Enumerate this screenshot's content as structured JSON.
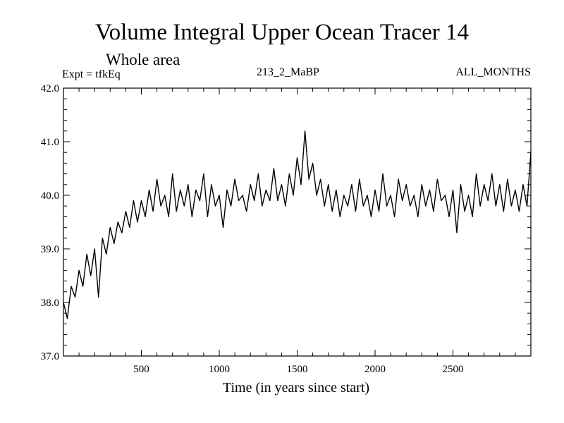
{
  "header": {
    "title": "Volume Integral Upper Ocean Tracer 14",
    "subtitle": "Whole area",
    "expt_label": "Expt = tfkEq",
    "run_label": "213_2_MaBP",
    "months_label": "ALL_MONTHS"
  },
  "chart_data": {
    "type": "line",
    "title": "Volume Integral Upper Ocean Tracer 14",
    "subtitle": "Whole area",
    "xlabel": "Time (in years since start)",
    "ylabel": "",
    "xlim": [
      0,
      3000
    ],
    "ylim": [
      37.0,
      42.0
    ],
    "x_ticks": [
      500,
      1000,
      1500,
      2000,
      2500
    ],
    "y_ticks": [
      "37.0",
      "38.0",
      "39.0",
      "40.0",
      "41.0",
      "42.0"
    ],
    "grid": false,
    "series": [
      {
        "x": [
          0,
          25,
          50,
          75,
          100,
          125,
          150,
          175,
          200,
          225,
          250,
          275,
          300,
          325,
          350,
          375,
          400,
          425,
          450,
          475,
          500,
          525,
          550,
          575,
          600,
          625,
          650,
          675,
          700,
          725,
          750,
          775,
          800,
          825,
          850,
          875,
          900,
          925,
          950,
          975,
          1000,
          1025,
          1050,
          1075,
          1100,
          1125,
          1150,
          1175,
          1200,
          1225,
          1250,
          1275,
          1300,
          1325,
          1350,
          1375,
          1400,
          1425,
          1450,
          1475,
          1500,
          1525,
          1550,
          1575,
          1600,
          1625,
          1650,
          1675,
          1700,
          1725,
          1750,
          1775,
          1800,
          1825,
          1850,
          1875,
          1900,
          1925,
          1950,
          1975,
          2000,
          2025,
          2050,
          2075,
          2100,
          2125,
          2150,
          2175,
          2200,
          2225,
          2250,
          2275,
          2300,
          2325,
          2350,
          2375,
          2400,
          2425,
          2450,
          2475,
          2500,
          2525,
          2550,
          2575,
          2600,
          2625,
          2650,
          2675,
          2700,
          2725,
          2750,
          2775,
          2800,
          2825,
          2850,
          2875,
          2900,
          2925,
          2950,
          2975,
          3000
        ],
        "values": [
          38.0,
          37.7,
          38.3,
          38.1,
          38.6,
          38.3,
          38.9,
          38.5,
          39.0,
          38.1,
          39.2,
          38.9,
          39.4,
          39.1,
          39.5,
          39.3,
          39.7,
          39.4,
          39.9,
          39.5,
          39.9,
          39.6,
          40.1,
          39.7,
          40.3,
          39.8,
          40.0,
          39.6,
          40.4,
          39.7,
          40.1,
          39.8,
          40.2,
          39.6,
          40.1,
          39.9,
          40.4,
          39.6,
          40.2,
          39.8,
          40.0,
          39.4,
          40.1,
          39.8,
          40.3,
          39.9,
          40.0,
          39.7,
          40.2,
          39.9,
          40.4,
          39.8,
          40.1,
          39.9,
          40.5,
          39.9,
          40.2,
          39.8,
          40.4,
          40.0,
          40.7,
          40.2,
          41.2,
          40.3,
          40.6,
          40.0,
          40.3,
          39.8,
          40.2,
          39.7,
          40.1,
          39.6,
          40.0,
          39.8,
          40.2,
          39.7,
          40.3,
          39.8,
          40.0,
          39.6,
          40.1,
          39.7,
          40.4,
          39.8,
          40.0,
          39.6,
          40.3,
          39.9,
          40.2,
          39.8,
          40.0,
          39.6,
          40.2,
          39.8,
          40.1,
          39.7,
          40.3,
          39.9,
          40.0,
          39.6,
          40.1,
          39.3,
          40.2,
          39.7,
          40.0,
          39.6,
          40.4,
          39.8,
          40.2,
          39.9,
          40.4,
          39.8,
          40.2,
          39.7,
          40.3,
          39.8,
          40.1,
          39.7,
          40.2,
          39.8,
          40.8
        ]
      }
    ]
  }
}
